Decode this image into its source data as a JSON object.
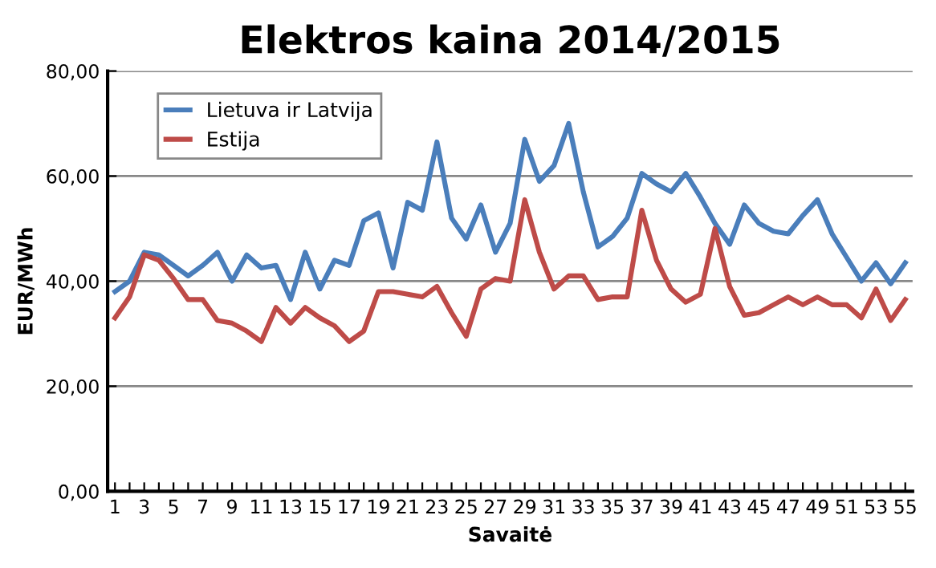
{
  "chart_data": {
    "type": "line",
    "title": "Elektros kaina 2014/2015",
    "xlabel": "Savaitė",
    "ylabel": "EUR/MWh",
    "x": [
      1,
      2,
      3,
      4,
      5,
      6,
      7,
      8,
      9,
      10,
      11,
      12,
      13,
      14,
      15,
      16,
      17,
      18,
      19,
      20,
      21,
      22,
      23,
      24,
      25,
      26,
      27,
      28,
      29,
      30,
      31,
      32,
      33,
      34,
      35,
      36,
      37,
      38,
      39,
      40,
      41,
      42,
      43,
      44,
      45,
      46,
      47,
      48,
      49,
      50,
      51,
      52,
      53,
      54,
      55
    ],
    "series": [
      {
        "name": "Lietuva ir Latvija",
        "color": "#4a7ebb",
        "values": [
          38,
          40,
          45.5,
          45,
          43,
          41,
          43,
          45.5,
          40,
          45,
          42.5,
          43,
          36.5,
          45.5,
          38.5,
          44,
          43,
          51.5,
          53,
          42.5,
          55,
          53.5,
          66.5,
          52,
          48,
          54.5,
          45.5,
          51,
          67,
          59,
          62,
          70,
          57,
          46.5,
          48.5,
          52,
          60.5,
          58.5,
          57,
          60.5,
          56,
          51,
          47,
          54.5,
          51,
          49.5,
          49,
          52.5,
          55.5,
          49,
          44.5,
          40,
          43.5,
          39.5,
          43.5
        ]
      },
      {
        "name": "Estija",
        "color": "#be4b48",
        "values": [
          33,
          37,
          45,
          44,
          40.5,
          36.5,
          36.5,
          32.5,
          32,
          30.5,
          28.5,
          35,
          32,
          35,
          33,
          31.5,
          28.5,
          30.5,
          38,
          38,
          37.5,
          37,
          39,
          34,
          29.5,
          38.5,
          40.5,
          40,
          55.5,
          45.5,
          38.5,
          41,
          41,
          36.5,
          37,
          37,
          53.5,
          44,
          38.5,
          36,
          37.5,
          50,
          39,
          33.5,
          34,
          35.5,
          37,
          35.5,
          37,
          35.5,
          35.5,
          33,
          38.5,
          32.5,
          36.5
        ]
      }
    ],
    "xlim": [
      0.5,
      55.5
    ],
    "xticks": [
      {
        "value": 1,
        "label": "1"
      },
      {
        "value": 2,
        "label": null
      },
      {
        "value": 3,
        "label": "3"
      },
      {
        "value": 4,
        "label": null
      },
      {
        "value": 5,
        "label": "5"
      },
      {
        "value": 6,
        "label": null
      },
      {
        "value": 7,
        "label": "7"
      },
      {
        "value": 8,
        "label": null
      },
      {
        "value": 9,
        "label": "9"
      },
      {
        "value": 10,
        "label": null
      },
      {
        "value": 11,
        "label": "11"
      },
      {
        "value": 12,
        "label": null
      },
      {
        "value": 13,
        "label": "13"
      },
      {
        "value": 14,
        "label": null
      },
      {
        "value": 15,
        "label": "15"
      },
      {
        "value": 16,
        "label": null
      },
      {
        "value": 17,
        "label": "17"
      },
      {
        "value": 18,
        "label": null
      },
      {
        "value": 19,
        "label": "19"
      },
      {
        "value": 20,
        "label": null
      },
      {
        "value": 21,
        "label": "21"
      },
      {
        "value": 22,
        "label": null
      },
      {
        "value": 23,
        "label": "23"
      },
      {
        "value": 24,
        "label": null
      },
      {
        "value": 25,
        "label": "25"
      },
      {
        "value": 26,
        "label": null
      },
      {
        "value": 27,
        "label": "27"
      },
      {
        "value": 28,
        "label": null
      },
      {
        "value": 29,
        "label": "29"
      },
      {
        "value": 30,
        "label": null
      },
      {
        "value": 31,
        "label": "31"
      },
      {
        "value": 32,
        "label": null
      },
      {
        "value": 33,
        "label": "33"
      },
      {
        "value": 34,
        "label": null
      },
      {
        "value": 35,
        "label": "35"
      },
      {
        "value": 36,
        "label": null
      },
      {
        "value": 37,
        "label": "37"
      },
      {
        "value": 38,
        "label": null
      },
      {
        "value": 39,
        "label": "39"
      },
      {
        "value": 40,
        "label": null
      },
      {
        "value": 41,
        "label": "41"
      },
      {
        "value": 42,
        "label": null
      },
      {
        "value": 43,
        "label": "43"
      },
      {
        "value": 44,
        "label": null
      },
      {
        "value": 45,
        "label": "45"
      },
      {
        "value": 46,
        "label": null
      },
      {
        "value": 47,
        "label": "47"
      },
      {
        "value": 48,
        "label": null
      },
      {
        "value": 49,
        "label": "49"
      },
      {
        "value": 50,
        "label": null
      },
      {
        "value": 51,
        "label": "51"
      },
      {
        "value": 52,
        "label": null
      },
      {
        "value": 53,
        "label": "53"
      },
      {
        "value": 54,
        "label": null
      },
      {
        "value": 55,
        "label": "55"
      }
    ],
    "ylim": [
      0,
      80
    ],
    "yticks": [
      {
        "value": 0,
        "label": "0,00"
      },
      {
        "value": 20,
        "label": "20,00"
      },
      {
        "value": 40,
        "label": "40,00"
      },
      {
        "value": 60,
        "label": "60,00"
      },
      {
        "value": 80,
        "label": "80,00"
      }
    ],
    "grid": "y",
    "legend": "top left",
    "marker": "none",
    "line_style": "solid"
  }
}
